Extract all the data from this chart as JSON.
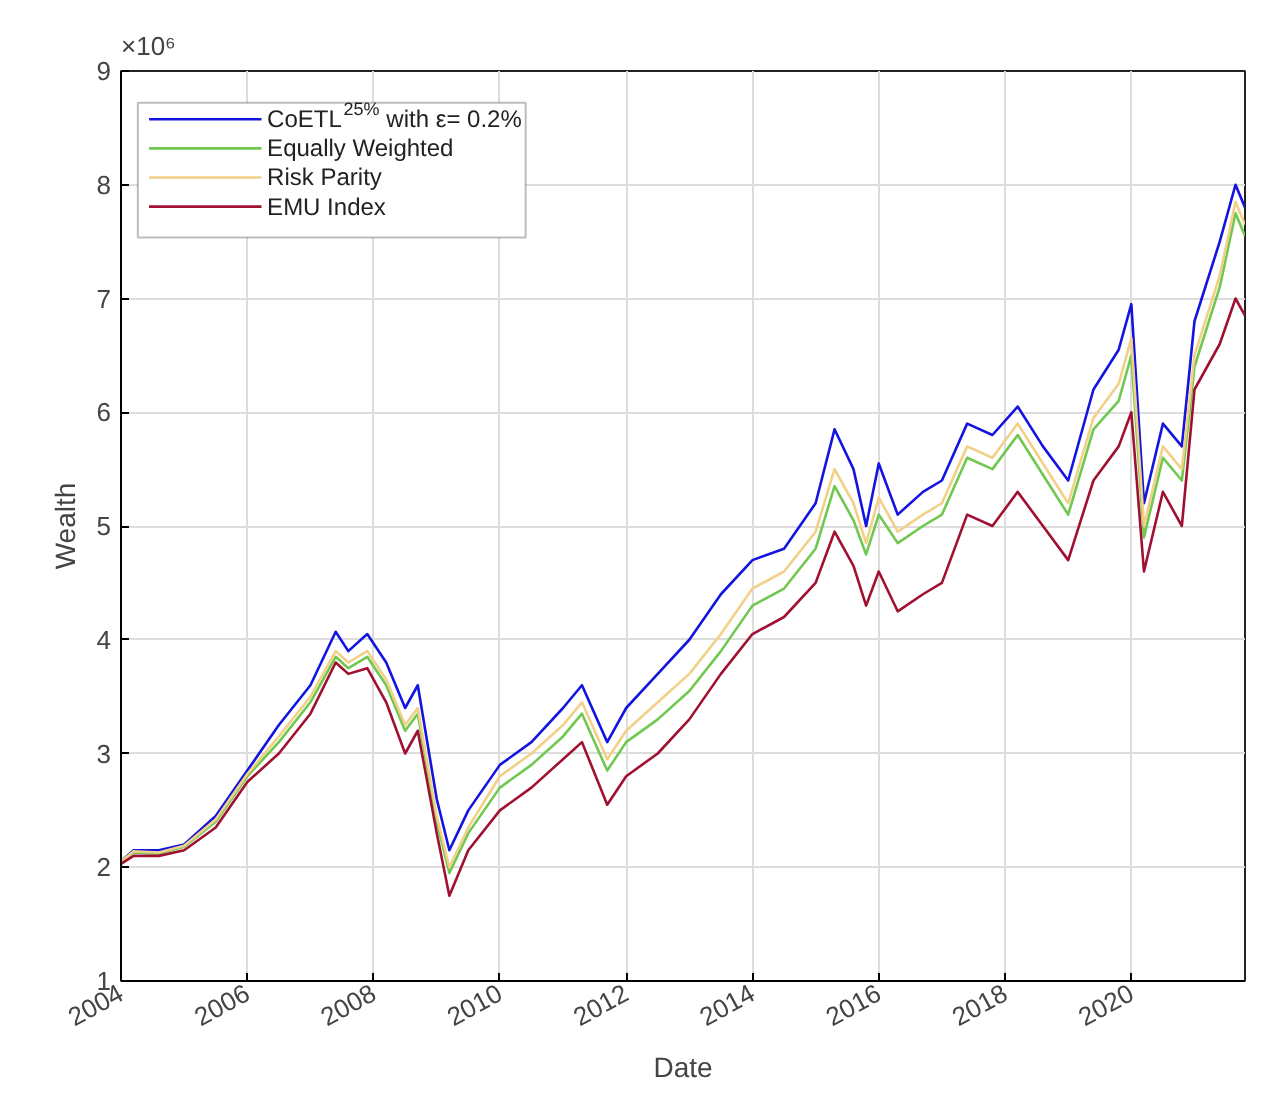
{
  "chart_data": {
    "type": "line",
    "xlabel": "Date",
    "ylabel": "Wealth",
    "annotations": [
      "×10⁶"
    ],
    "x": [
      2004.0,
      2004.2,
      2004.6,
      2005.0,
      2005.5,
      2006.0,
      2006.5,
      2007.0,
      2007.4,
      2007.6,
      2007.9,
      2008.2,
      2008.5,
      2008.7,
      2009.0,
      2009.2,
      2009.5,
      2010.0,
      2010.5,
      2011.0,
      2011.3,
      2011.7,
      2012.0,
      2012.5,
      2013.0,
      2013.5,
      2014.0,
      2014.5,
      2015.0,
      2015.3,
      2015.6,
      2015.8,
      2016.0,
      2016.3,
      2016.7,
      2017.0,
      2017.4,
      2017.8,
      2018.2,
      2018.6,
      2019.0,
      2019.4,
      2019.8,
      2020.0,
      2020.2,
      2020.5,
      2020.8,
      2021.0,
      2021.4,
      2021.65,
      2021.8
    ],
    "series": [
      {
        "name": "CoETL$^{25%}$ with ε= 0.2%",
        "color": "#1414e0",
        "values": [
          2.05,
          2.15,
          2.15,
          2.2,
          2.45,
          2.85,
          3.25,
          3.6,
          4.07,
          3.9,
          4.05,
          3.8,
          3.4,
          3.6,
          2.6,
          2.15,
          2.5,
          2.9,
          3.1,
          3.4,
          3.6,
          3.1,
          3.4,
          3.7,
          4.0,
          4.4,
          4.7,
          4.8,
          5.2,
          5.85,
          5.5,
          5.0,
          5.55,
          5.1,
          5.3,
          5.4,
          5.9,
          5.8,
          6.05,
          5.7,
          5.4,
          6.2,
          6.55,
          6.95,
          5.2,
          5.9,
          5.7,
          6.8,
          7.5,
          8.0,
          7.8
        ]
      },
      {
        "name": "Equally Weighted",
        "color": "#70c850",
        "values": [
          2.05,
          2.13,
          2.12,
          2.18,
          2.4,
          2.8,
          3.1,
          3.45,
          3.85,
          3.75,
          3.85,
          3.6,
          3.2,
          3.35,
          2.4,
          1.95,
          2.3,
          2.7,
          2.9,
          3.15,
          3.35,
          2.85,
          3.1,
          3.3,
          3.55,
          3.9,
          4.3,
          4.45,
          4.8,
          5.35,
          5.05,
          4.75,
          5.1,
          4.85,
          5.0,
          5.1,
          5.6,
          5.5,
          5.8,
          5.45,
          5.1,
          5.85,
          6.1,
          6.5,
          4.9,
          5.6,
          5.4,
          6.4,
          7.1,
          7.75,
          7.55
        ]
      },
      {
        "name": "Risk Parity",
        "color": "#f2d088",
        "values": [
          2.05,
          2.14,
          2.13,
          2.19,
          2.42,
          2.82,
          3.15,
          3.5,
          3.9,
          3.8,
          3.9,
          3.65,
          3.25,
          3.4,
          2.45,
          2.0,
          2.35,
          2.8,
          3.0,
          3.25,
          3.45,
          2.95,
          3.2,
          3.45,
          3.7,
          4.05,
          4.45,
          4.6,
          4.95,
          5.5,
          5.2,
          4.85,
          5.25,
          4.95,
          5.1,
          5.2,
          5.7,
          5.6,
          5.9,
          5.55,
          5.2,
          5.95,
          6.25,
          6.65,
          5.0,
          5.7,
          5.5,
          6.5,
          7.2,
          7.85,
          7.65
        ]
      },
      {
        "name": "EMU Index",
        "color": "#a01030",
        "values": [
          2.03,
          2.1,
          2.1,
          2.15,
          2.35,
          2.75,
          3.0,
          3.35,
          3.8,
          3.7,
          3.75,
          3.45,
          3.0,
          3.2,
          2.3,
          1.75,
          2.15,
          2.5,
          2.7,
          2.95,
          3.1,
          2.55,
          2.8,
          3.0,
          3.3,
          3.7,
          4.05,
          4.2,
          4.5,
          4.95,
          4.65,
          4.3,
          4.6,
          4.25,
          4.4,
          4.5,
          5.1,
          5.0,
          5.3,
          5.0,
          4.7,
          5.4,
          5.7,
          6.0,
          4.6,
          5.3,
          5.0,
          6.2,
          6.6,
          7.0,
          6.85
        ]
      }
    ],
    "xlim": [
      2004,
      2021.8
    ],
    "ylim": [
      1,
      9
    ],
    "xticks": [
      2004,
      2006,
      2008,
      2010,
      2012,
      2014,
      2016,
      2018,
      2020
    ],
    "yticks": [
      1,
      2,
      3,
      4,
      5,
      6,
      7,
      8,
      9
    ],
    "grid": true,
    "legend": "top left",
    "line_style": "solid"
  }
}
